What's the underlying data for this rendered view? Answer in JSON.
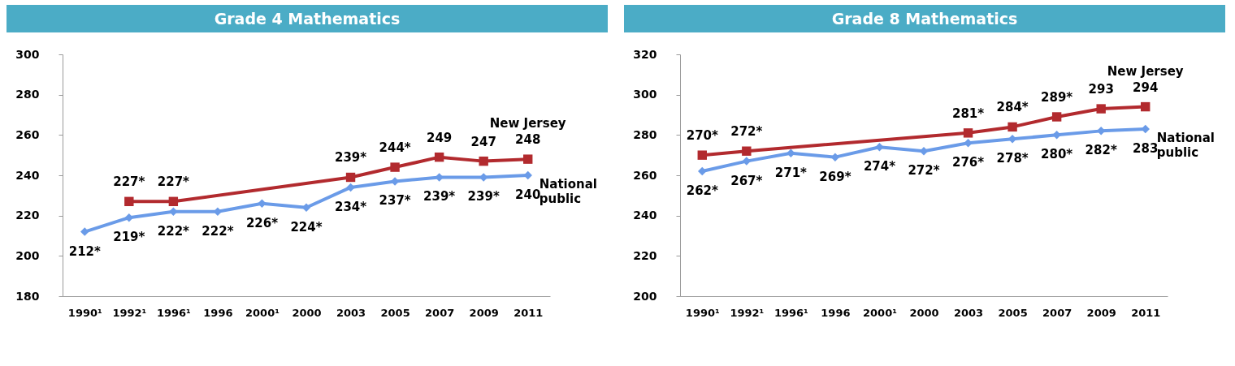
{
  "chart_data": [
    {
      "type": "line",
      "title": "Grade 4 Mathematics",
      "categories": [
        "1990¹",
        "1992¹",
        "1996¹",
        "1996",
        "2000¹",
        "2000",
        "2003",
        "2005",
        "2007",
        "2009",
        "2011"
      ],
      "series": [
        {
          "name": "New Jersey",
          "color": "#b22a2e",
          "marker": "square",
          "values": [
            null,
            227,
            227,
            null,
            null,
            null,
            239,
            244,
            249,
            247,
            248
          ],
          "value_labels": [
            null,
            "227*",
            "227*",
            null,
            null,
            null,
            "239*",
            "244*",
            "249",
            "247",
            "248"
          ]
        },
        {
          "name": "National public",
          "color": "#6a9be8",
          "marker": "diamond",
          "values": [
            212,
            219,
            222,
            222,
            226,
            224,
            234,
            237,
            239,
            239,
            240
          ],
          "value_labels": [
            "212*",
            "219*",
            "222*",
            "222*",
            "226*",
            "224*",
            "234*",
            "237*",
            "239*",
            "239*",
            "240"
          ]
        }
      ],
      "ylim": [
        180,
        300
      ],
      "yticks": [
        180,
        200,
        220,
        240,
        260,
        280,
        300
      ]
    },
    {
      "type": "line",
      "title": "Grade 8 Mathematics",
      "categories": [
        "1990¹",
        "1992¹",
        "1996¹",
        "1996",
        "2000¹",
        "2000",
        "2003",
        "2005",
        "2007",
        "2009",
        "2011"
      ],
      "series": [
        {
          "name": "New Jersey",
          "color": "#b22a2e",
          "marker": "square",
          "values": [
            270,
            272,
            null,
            null,
            null,
            null,
            281,
            284,
            289,
            293,
            294
          ],
          "value_labels": [
            "270*",
            "272*",
            null,
            null,
            null,
            null,
            "281*",
            "284*",
            "289*",
            "293",
            "294"
          ]
        },
        {
          "name": "National public",
          "color": "#6a9be8",
          "marker": "diamond",
          "values": [
            262,
            267,
            271,
            269,
            274,
            272,
            276,
            278,
            280,
            282,
            283
          ],
          "value_labels": [
            "262*",
            "267*",
            "271*",
            "269*",
            "274*",
            "272*",
            "276*",
            "278*",
            "280*",
            "282*",
            "283"
          ]
        }
      ],
      "ylim": [
        200,
        320
      ],
      "yticks": [
        200,
        220,
        240,
        260,
        280,
        300,
        320
      ]
    }
  ]
}
